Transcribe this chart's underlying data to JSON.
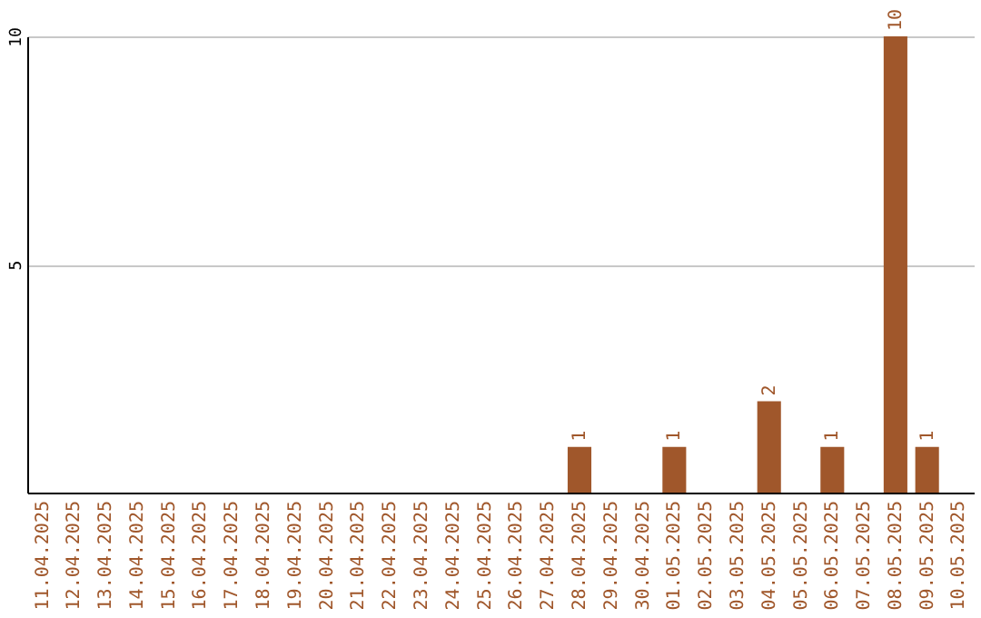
{
  "chart_data": {
    "type": "bar",
    "categories": [
      "11.04.2025",
      "12.04.2025",
      "13.04.2025",
      "14.04.2025",
      "15.04.2025",
      "16.04.2025",
      "17.04.2025",
      "18.04.2025",
      "19.04.2025",
      "20.04.2025",
      "21.04.2025",
      "22.04.2025",
      "23.04.2025",
      "24.04.2025",
      "25.04.2025",
      "26.04.2025",
      "27.04.2025",
      "28.04.2025",
      "29.04.2025",
      "30.04.2025",
      "01.05.2025",
      "02.05.2025",
      "03.05.2025",
      "04.05.2025",
      "05.05.2025",
      "06.05.2025",
      "07.05.2025",
      "08.05.2025",
      "09.05.2025",
      "10.05.2025"
    ],
    "values": [
      0,
      0,
      0,
      0,
      0,
      0,
      0,
      0,
      0,
      0,
      0,
      0,
      0,
      0,
      0,
      0,
      0,
      1,
      0,
      0,
      1,
      0,
      0,
      2,
      0,
      1,
      0,
      10,
      1,
      0
    ],
    "value_labels": [
      null,
      null,
      null,
      null,
      null,
      null,
      null,
      null,
      null,
      null,
      null,
      null,
      null,
      null,
      null,
      null,
      null,
      "1",
      null,
      null,
      "1",
      null,
      null,
      "2",
      null,
      "1",
      null,
      "10",
      "1",
      null
    ],
    "color": "#a0572b",
    "ylim": [
      0,
      10
    ],
    "yticks": [
      5,
      10
    ],
    "grid": "y"
  }
}
